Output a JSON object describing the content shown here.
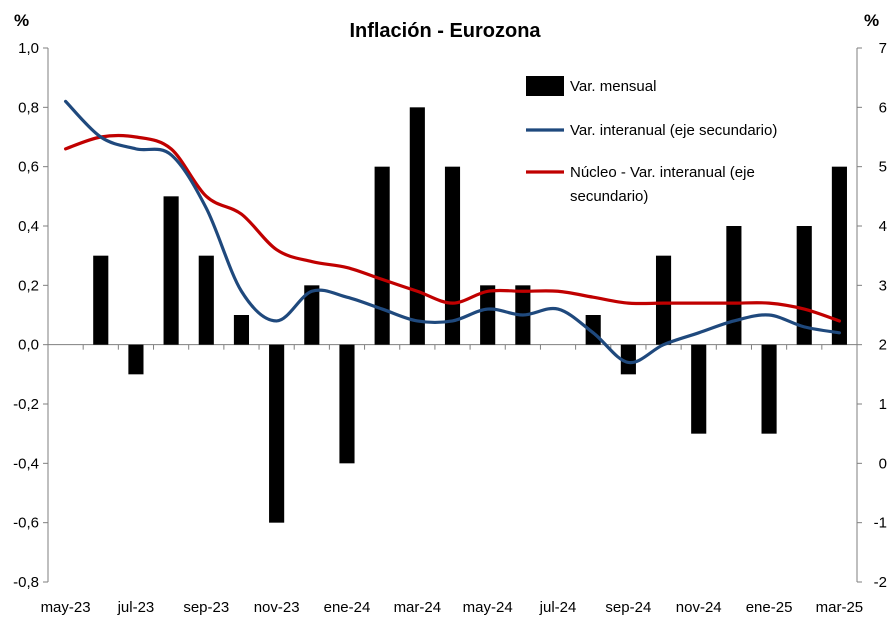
{
  "chart_data": {
    "type": "bar+line",
    "title": "Inflación - Eurozona",
    "left_unit": "%",
    "right_unit": "%",
    "x_tick_labels": [
      "may-23",
      "jul-23",
      "sep-23",
      "nov-23",
      "ene-24",
      "mar-24",
      "may-24",
      "jul-24",
      "sep-24",
      "nov-24",
      "ene-25",
      "mar-25"
    ],
    "categories": [
      "may-23",
      "jun-23",
      "jul-23",
      "ago-23",
      "sep-23",
      "oct-23",
      "nov-23",
      "dic-23",
      "ene-24",
      "feb-24",
      "mar-24",
      "abr-24",
      "may-24",
      "jun-24",
      "jul-24",
      "ago-24",
      "sep-24",
      "oct-24",
      "nov-24",
      "dic-24",
      "ene-25",
      "feb-25",
      "mar-25"
    ],
    "y_left": {
      "min": -0.8,
      "max": 1.0,
      "step": 0.2,
      "tick_labels": [
        "-0,8",
        "-0,6",
        "-0,4",
        "-0,2",
        "0,0",
        "0,2",
        "0,4",
        "0,6",
        "0,8",
        "1,0"
      ]
    },
    "y_right": {
      "min": -2,
      "max": 7,
      "step": 1,
      "tick_labels": [
        "-2",
        "-1",
        "0",
        "1",
        "2",
        "3",
        "4",
        "5",
        "6",
        "7"
      ]
    },
    "series": [
      {
        "name": "Var. mensual",
        "kind": "bar",
        "axis": "left",
        "color": "#000000",
        "values": [
          0.0,
          0.3,
          -0.1,
          0.5,
          0.3,
          0.1,
          -0.6,
          0.2,
          -0.4,
          0.6,
          0.8,
          0.6,
          0.2,
          0.2,
          0.0,
          0.1,
          -0.1,
          0.3,
          -0.3,
          0.4,
          -0.3,
          0.4,
          0.6
        ]
      },
      {
        "name": "Var. interanual (eje secundario)",
        "kind": "line",
        "axis": "right",
        "color": "#1F497D",
        "values": [
          6.1,
          5.5,
          5.3,
          5.2,
          4.3,
          2.9,
          2.4,
          2.9,
          2.8,
          2.6,
          2.4,
          2.4,
          2.6,
          2.5,
          2.6,
          2.2,
          1.7,
          2.0,
          2.2,
          2.4,
          2.5,
          2.3,
          2.2
        ]
      },
      {
        "name": "Núcleo - Var. interanual (eje secundario)",
        "kind": "line",
        "axis": "right",
        "color": "#C00000",
        "values": [
          5.3,
          5.5,
          5.5,
          5.3,
          4.5,
          4.2,
          3.6,
          3.4,
          3.3,
          3.1,
          2.9,
          2.7,
          2.9,
          2.9,
          2.9,
          2.8,
          2.7,
          2.7,
          2.7,
          2.7,
          2.7,
          2.6,
          2.4
        ]
      }
    ],
    "legend": {
      "position": "top-right",
      "lines": [
        [
          "Var. mensual"
        ],
        [
          "Var. interanual (eje secundario)"
        ],
        [
          "Núcleo - Var. interanual (eje",
          "secundario)"
        ]
      ]
    }
  }
}
